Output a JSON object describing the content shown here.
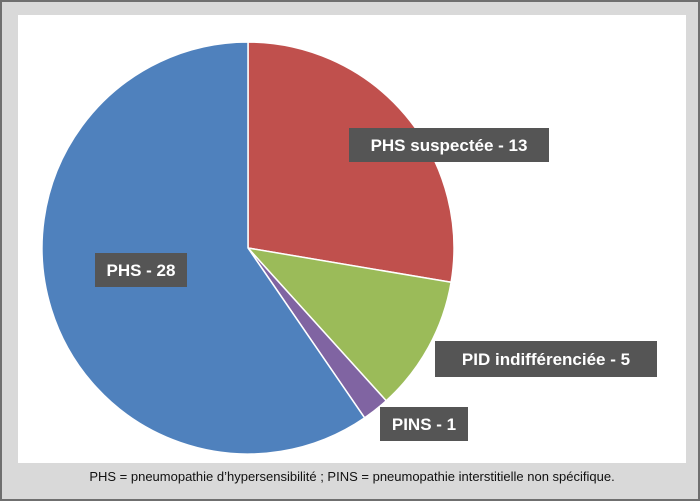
{
  "chart_data": {
    "type": "pie",
    "slices": [
      {
        "label": "PHS suspectée - 13",
        "value": 13,
        "color": "#c0504d"
      },
      {
        "label": "PID indifférenciée - 5",
        "value": 5,
        "color": "#9bbb59"
      },
      {
        "label": "PINS - 1",
        "value": 1,
        "color": "#8064a2"
      },
      {
        "label": "PHS - 28",
        "value": 28,
        "color": "#4f81bd"
      }
    ]
  },
  "colors": {
    "frame_background": "#d9d9d9",
    "label_background": "#555555",
    "label_text": "#ffffff"
  },
  "footnote": "PHS = pneumopathie d’hypersensibilité ; PINS = pneumopathie interstitielle non spécifique."
}
